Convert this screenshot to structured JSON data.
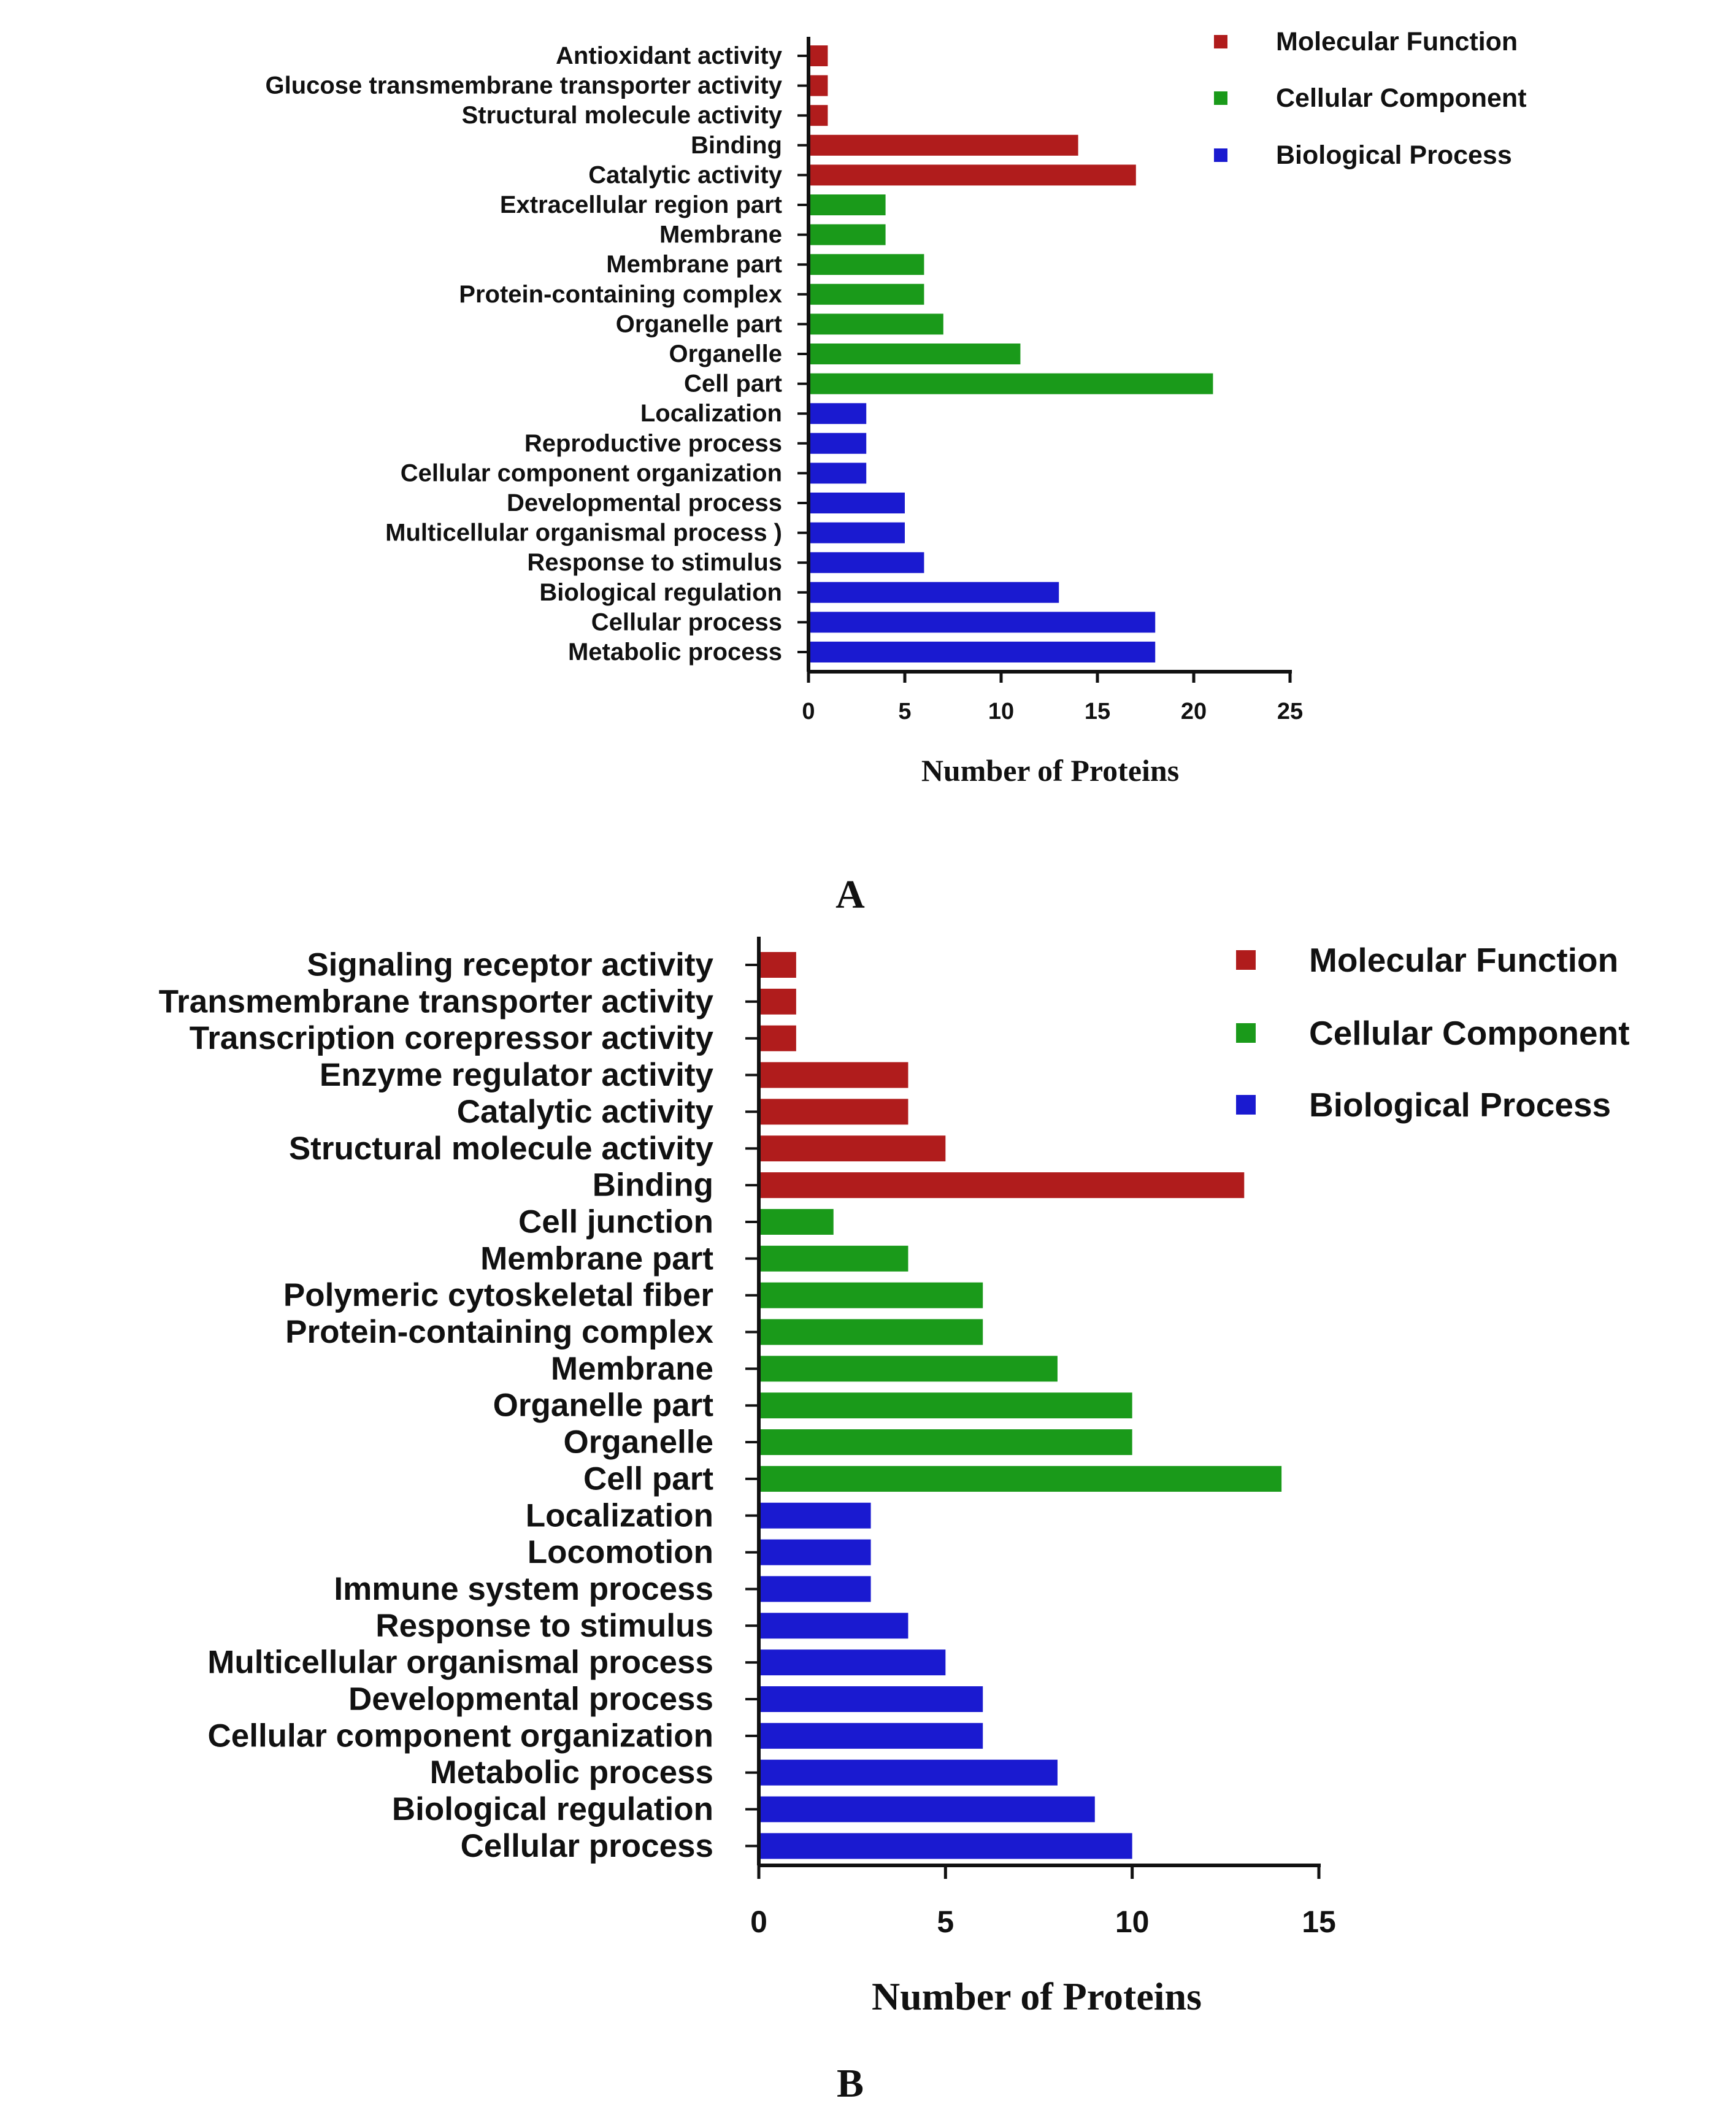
{
  "chart_data": [
    {
      "type": "bar",
      "orientation": "horizontal",
      "panel_label": "A",
      "xlabel": "Number of Proteins",
      "xlim": [
        0,
        25
      ],
      "xticks": [
        "0",
        "5",
        "10",
        "15",
        "20",
        "25"
      ],
      "legend": [
        {
          "name": "Molecular Function",
          "color": "#b01c1c"
        },
        {
          "name": "Cellular Component",
          "color": "#1a9a1a"
        },
        {
          "name": "Biological Process",
          "color": "#1a1ad0"
        }
      ],
      "categories": [
        "Antioxidant activity",
        "Glucose transmembrane transporter activity",
        "Structural molecule activity",
        "Binding",
        "Catalytic activity",
        "Extracellular region part",
        "Membrane",
        "Membrane part",
        "Protein-containing complex",
        "Organelle part",
        "Organelle",
        "Cell part",
        "Localization",
        "Reproductive process",
        "Cellular component organization",
        "Developmental process",
        "Multicellular organismal process )",
        "Response to stimulus",
        "Biological regulation",
        "Cellular process",
        "Metabolic process"
      ],
      "values": [
        1,
        1,
        1,
        14,
        17,
        4,
        4,
        6,
        6,
        7,
        11,
        21,
        3,
        3,
        3,
        5,
        5,
        6,
        13,
        18,
        18
      ],
      "groups": [
        0,
        0,
        0,
        0,
        0,
        1,
        1,
        1,
        1,
        1,
        1,
        1,
        2,
        2,
        2,
        2,
        2,
        2,
        2,
        2,
        2
      ]
    },
    {
      "type": "bar",
      "orientation": "horizontal",
      "panel_label": "B",
      "xlabel": "Number of Proteins",
      "xlim": [
        0,
        15
      ],
      "xticks": [
        "0",
        "5",
        "10",
        "15"
      ],
      "legend": [
        {
          "name": "Molecular Function",
          "color": "#b01c1c"
        },
        {
          "name": "Cellular Component",
          "color": "#1a9a1a"
        },
        {
          "name": "Biological Process",
          "color": "#1a1ad0"
        }
      ],
      "categories": [
        "Signaling receptor activity",
        "Transmembrane transporter activity",
        "Transcription corepressor activity",
        "Enzyme regulator activity",
        "Catalytic activity",
        "Structural molecule activity",
        "Binding",
        "Cell junction",
        "Membrane part",
        "Polymeric cytoskeletal fiber",
        "Protein-containing complex",
        "Membrane",
        "Organelle part",
        "Organelle",
        "Cell part",
        "Localization",
        "Locomotion",
        "Immune system process",
        "Response to stimulus",
        "Multicellular organismal process",
        "Developmental process",
        "Cellular component organization",
        "Metabolic process",
        "Biological regulation",
        "Cellular process"
      ],
      "values": [
        1,
        1,
        1,
        4,
        4,
        5,
        13,
        2,
        4,
        6,
        6,
        8,
        10,
        10,
        14,
        3,
        3,
        3,
        4,
        5,
        6,
        6,
        8,
        9,
        10
      ],
      "groups": [
        0,
        0,
        0,
        0,
        0,
        0,
        0,
        1,
        1,
        1,
        1,
        1,
        1,
        1,
        1,
        2,
        2,
        2,
        2,
        2,
        2,
        2,
        2,
        2,
        2
      ]
    }
  ]
}
